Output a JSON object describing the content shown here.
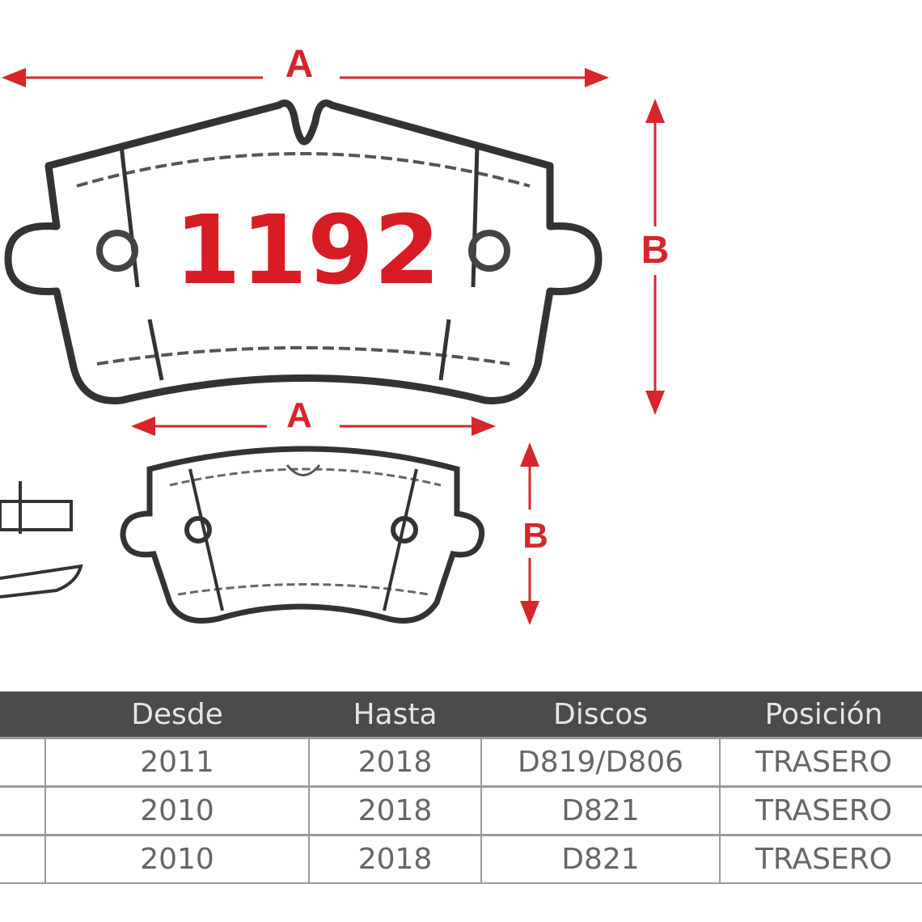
{
  "diagram": {
    "part_code": "1192",
    "dimension_labels": {
      "large_width": "A",
      "large_height": "B",
      "small_width": "A",
      "small_height": "B"
    },
    "accent_color": "#d71c24"
  },
  "table": {
    "headers": [
      "",
      "Desde",
      "Hasta",
      "Discos",
      "Posición"
    ],
    "rows": [
      [
        "",
        "2011",
        "2018",
        "D819/D806",
        "TRASERO"
      ],
      [
        "",
        "2010",
        "2018",
        "D821",
        "TRASERO"
      ],
      [
        "",
        "2010",
        "2018",
        "D821",
        "TRASERO"
      ]
    ]
  }
}
